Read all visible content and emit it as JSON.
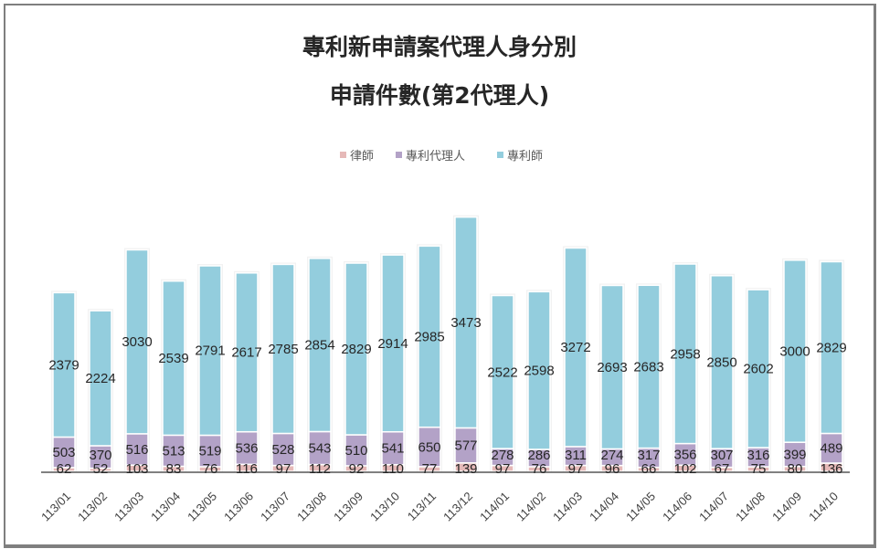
{
  "chart_data": {
    "type": "bar",
    "stacked": true,
    "title": [
      "專利新申請案代理人身分別",
      "申請件數(第2代理人)"
    ],
    "legend_position": "top",
    "grid": false,
    "ylim": [
      0,
      4500
    ],
    "categories": [
      "113/01",
      "113/02",
      "113/03",
      "113/04",
      "113/05",
      "113/06",
      "113/07",
      "113/08",
      "113/09",
      "113/10",
      "113/11",
      "113/12",
      "114/01",
      "114/02",
      "114/03",
      "114/04",
      "114/05",
      "114/06",
      "114/07",
      "114/08",
      "114/09",
      "114/10"
    ],
    "series": [
      {
        "name": "律師",
        "color": "#e6b9b8",
        "values": [
          62,
          52,
          103,
          83,
          76,
          116,
          97,
          112,
          92,
          110,
          77,
          139,
          97,
          76,
          97,
          96,
          66,
          102,
          67,
          75,
          80,
          136
        ]
      },
      {
        "name": "專利代理人",
        "color": "#b3a2c7",
        "values": [
          503,
          370,
          516,
          513,
          519,
          536,
          528,
          543,
          510,
          541,
          650,
          577,
          278,
          286,
          311,
          274,
          317,
          356,
          307,
          316,
          399,
          489
        ]
      },
      {
        "name": "專利師",
        "color": "#93cddd",
        "values": [
          2379,
          2224,
          3030,
          2539,
          2791,
          2617,
          2785,
          2854,
          2829,
          2914,
          2985,
          3473,
          2522,
          2598,
          3272,
          2693,
          2683,
          2958,
          2850,
          2602,
          3000,
          2829
        ]
      }
    ]
  }
}
